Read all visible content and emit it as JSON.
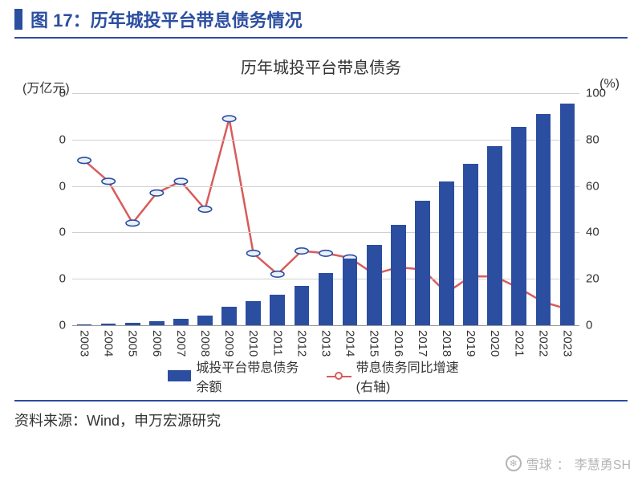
{
  "colors": {
    "accent": "#2b4ea0",
    "bar": "#2b4ea0",
    "line": "#d95b5b",
    "marker_border": "#2b4ea0",
    "marker_fill": "#eaf0fa",
    "grid": "#d0d0d0"
  },
  "figure": {
    "number_label": "图 17：",
    "title": "历年城投平台带息债务情况"
  },
  "chart": {
    "type": "bar+line-dual-axis",
    "title": "历年城投平台带息债务",
    "left_axis_label": "(万亿元)",
    "right_axis_label": "(%)",
    "categories": [
      "2003",
      "2004",
      "2005",
      "2006",
      "2007",
      "2008",
      "2009",
      "2010",
      "2011",
      "2012",
      "2013",
      "2014",
      "2015",
      "2016",
      "2017",
      "2018",
      "2019",
      "2020",
      "2021",
      "2022",
      "2023"
    ],
    "bars": {
      "label": "城投平台带息债务余额",
      "max": 90,
      "ticks": [
        0,
        0,
        0,
        0,
        0,
        0
      ],
      "values": [
        0.4,
        0.7,
        1.0,
        1.6,
        2.5,
        3.8,
        7.2,
        9.5,
        11.7,
        15.4,
        20.3,
        25.9,
        31.3,
        39.0,
        48.4,
        55.7,
        62.5,
        69.5,
        77.0,
        82.0,
        86.0
      ]
    },
    "line": {
      "label": "带息债务同比增速(右轴)",
      "min": 0,
      "max": 100,
      "ticks": [
        0,
        20,
        40,
        60,
        80,
        100
      ],
      "values": [
        71,
        62,
        44,
        57,
        62,
        50,
        89,
        31,
        22,
        32,
        31,
        29,
        22,
        25,
        24,
        14,
        21,
        21,
        16,
        10,
        7
      ]
    },
    "bar_width_ratio": 0.62,
    "line_width": 2.5,
    "marker_radius": 5
  },
  "legend": {
    "bar": "城投平台带息债务余额",
    "line": "带息债务同比增速(右轴)"
  },
  "source": "资料来源：Wind，申万宏源研究",
  "watermark": {
    "site": "雪球",
    "author": "李慧勇SH"
  }
}
